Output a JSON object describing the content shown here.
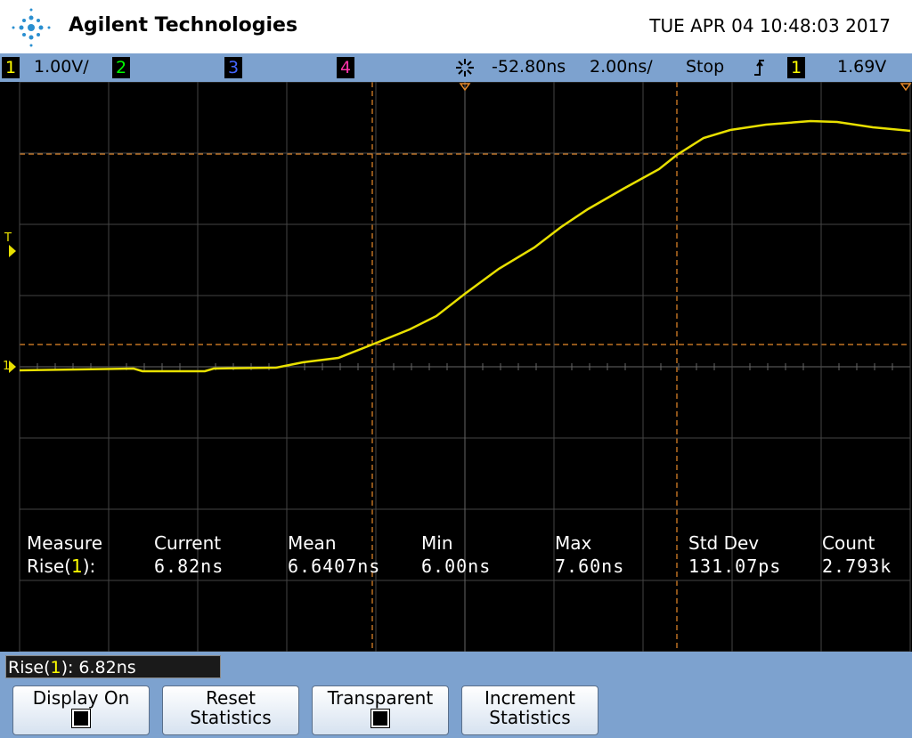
{
  "header": {
    "brand": "Agilent Technologies",
    "datetime": "TUE APR 04 10:48:03 2017"
  },
  "status_bar": {
    "ch1": "1",
    "ch1_scale": "1.00V/",
    "ch2": "2",
    "ch3": "3",
    "ch4": "4",
    "time_offset": "-52.80ns",
    "time_scale": "2.00ns/",
    "mode": "Stop",
    "trigger_channel": "1",
    "trigger_level": "1.69V"
  },
  "screen": {
    "trigger_marker": "T",
    "ground_marker": "1"
  },
  "measurements": {
    "headers": [
      "Measure",
      "Current",
      "Mean",
      "Min",
      "Max",
      "Std Dev",
      "Count"
    ],
    "row_label": [
      "Rise(",
      "1",
      "):"
    ],
    "row_values": [
      "6.82ns",
      "6.6407ns",
      "6.00ns",
      "7.60ns",
      "131.07ps",
      "2.793k"
    ]
  },
  "readout": [
    "Rise(",
    "1",
    "): 6.82ns"
  ],
  "softkeys": [
    {
      "lines": [
        "Display On"
      ],
      "checkbox": true
    },
    {
      "lines": [
        "Reset",
        "Statistics"
      ],
      "checkbox": false
    },
    {
      "lines": [
        "Transparent"
      ],
      "checkbox": true
    },
    {
      "lines": [
        "Increment",
        "Statistics"
      ],
      "checkbox": false
    }
  ]
}
